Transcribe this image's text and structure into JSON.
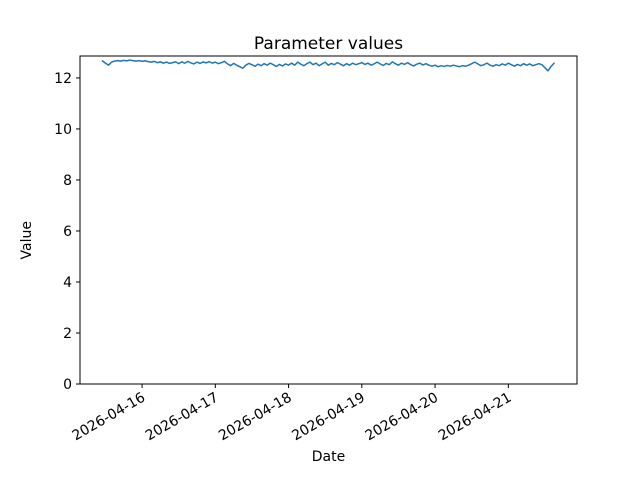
{
  "figure": {
    "background": "#ffffff",
    "frame_color": "#000000",
    "text_color": "#000000"
  },
  "chart_data": {
    "type": "line",
    "title": "Parameter values",
    "xlabel": "Date",
    "ylabel": "Value",
    "line_color": "#1f77b4",
    "grid": false,
    "legend_position": "none",
    "x_tick_labels": [
      "2026-04-16",
      "2026-04-17",
      "2026-04-18",
      "2026-04-19",
      "2026-04-20",
      "2026-04-21"
    ],
    "y_ticks": [
      0,
      2,
      4,
      6,
      8,
      10,
      12
    ],
    "ylim": [
      0,
      12.86
    ],
    "xlim": [
      "2026-04-15T03:40:00",
      "2026-04-21T22:30:00"
    ],
    "x_start": "2026-04-15T11:00:00",
    "x_interval_hours": 1,
    "values": [
      12.67,
      12.58,
      12.5,
      12.62,
      12.66,
      12.68,
      12.66,
      12.69,
      12.67,
      12.7,
      12.68,
      12.66,
      12.68,
      12.65,
      12.67,
      12.64,
      12.62,
      12.65,
      12.6,
      12.63,
      12.58,
      12.62,
      12.57,
      12.6,
      12.63,
      12.56,
      12.63,
      12.58,
      12.65,
      12.59,
      12.55,
      12.62,
      12.57,
      12.63,
      12.59,
      12.64,
      12.58,
      12.62,
      12.56,
      12.6,
      12.65,
      12.55,
      12.48,
      12.57,
      12.5,
      12.44,
      12.38,
      12.5,
      12.57,
      12.52,
      12.46,
      12.54,
      12.48,
      12.56,
      12.5,
      12.58,
      12.52,
      12.45,
      12.53,
      12.47,
      12.55,
      12.5,
      12.58,
      12.5,
      12.62,
      12.54,
      12.48,
      12.56,
      12.62,
      12.52,
      12.58,
      12.48,
      12.55,
      12.62,
      12.5,
      12.57,
      12.52,
      12.6,
      12.54,
      12.48,
      12.56,
      12.5,
      12.58,
      12.52,
      12.56,
      12.6,
      12.53,
      12.58,
      12.5,
      12.55,
      12.62,
      12.55,
      12.49,
      12.57,
      12.52,
      12.63,
      12.56,
      12.5,
      12.58,
      12.53,
      12.6,
      12.52,
      12.47,
      12.54,
      12.58,
      12.51,
      12.56,
      12.5,
      12.46,
      12.5,
      12.44,
      12.48,
      12.45,
      12.49,
      12.46,
      12.5,
      12.47,
      12.44,
      12.48,
      12.46,
      12.5,
      12.56,
      12.62,
      12.55,
      12.48,
      12.52,
      12.58,
      12.5,
      12.46,
      12.52,
      12.48,
      12.55,
      12.5,
      12.58,
      12.52,
      12.46,
      12.53,
      12.48,
      12.56,
      12.5,
      12.55,
      12.48,
      12.52,
      12.56,
      12.52,
      12.4,
      12.28,
      12.45,
      12.58
    ]
  }
}
